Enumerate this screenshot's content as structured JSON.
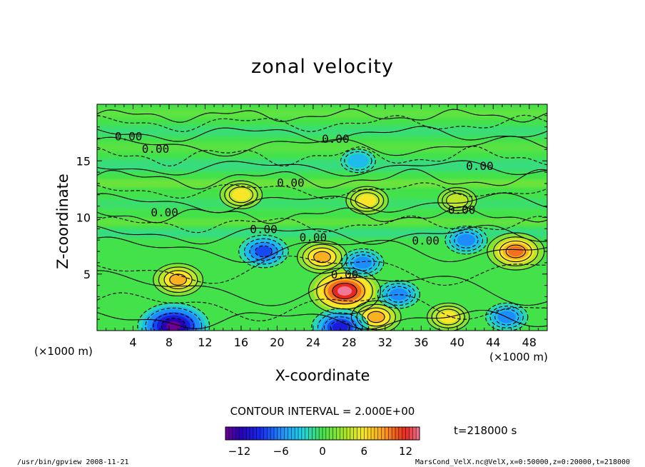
{
  "chart_data": {
    "type": "heatmap",
    "title": "zonal velocity",
    "xlabel": "X-coordinate",
    "ylabel": "Z-coordinate",
    "x_unit": "(×1000 m)",
    "y_unit": "(×1000 m)",
    "xlim": [
      0,
      50
    ],
    "ylim": [
      0,
      20
    ],
    "x_ticks": [
      4,
      8,
      12,
      16,
      20,
      24,
      28,
      32,
      36,
      40,
      44,
      48
    ],
    "y_ticks": [
      5,
      10,
      15
    ],
    "contour_interval_text": "CONTOUR INTERVAL = 2.000E+00",
    "contour_label": "0.00",
    "time_label": "t=218000  s",
    "colorbar": {
      "vmin": -14,
      "vmax": 14,
      "ticks": [
        -12,
        -6,
        0,
        6,
        12
      ],
      "tick_labels": [
        "−12",
        "−6",
        "0",
        "6",
        "12"
      ]
    },
    "features": [
      {
        "x": 9,
        "z": 4.5,
        "value": 8
      },
      {
        "x": 27.5,
        "z": 3.5,
        "value": 14
      },
      {
        "x": 25,
        "z": 6.5,
        "value": 8
      },
      {
        "x": 46.5,
        "z": 7,
        "value": 10
      },
      {
        "x": 31,
        "z": 1.2,
        "value": 8
      },
      {
        "x": 39,
        "z": 1.2,
        "value": 6
      },
      {
        "x": 18.5,
        "z": 7,
        "value": -8
      },
      {
        "x": 29.5,
        "z": 6,
        "value": -6
      },
      {
        "x": 8.5,
        "z": 0.4,
        "value": -14
      },
      {
        "x": 27,
        "z": 0.3,
        "value": -10
      },
      {
        "x": 45.5,
        "z": 1.2,
        "value": -6
      },
      {
        "x": 41,
        "z": 8,
        "value": -6
      },
      {
        "x": 33.5,
        "z": 3.2,
        "value": -6
      },
      {
        "x": 29,
        "z": 15,
        "value": -4
      },
      {
        "x": 16,
        "z": 12,
        "value": 6
      },
      {
        "x": 30,
        "z": 11.5,
        "value": 6
      },
      {
        "x": 40,
        "z": 11.5,
        "value": 5
      }
    ]
  },
  "footer": {
    "left": "/usr/bin/gpview  2008-11-21",
    "right": "MarsCond_VelX.nc@VelX,x=0:50000,z=0:20000,t=218000"
  }
}
